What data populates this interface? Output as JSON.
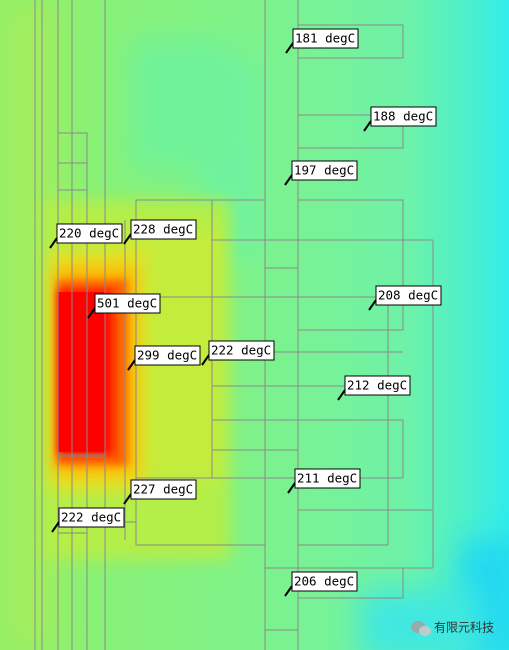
{
  "probes": [
    {
      "label": "181 degC"
    },
    {
      "label": "188 degC"
    },
    {
      "label": "197 degC"
    },
    {
      "label": "220 degC"
    },
    {
      "label": "228 degC"
    },
    {
      "label": "501 degC"
    },
    {
      "label": "208 degC"
    },
    {
      "label": "222 degC"
    },
    {
      "label": "299 degC"
    },
    {
      "label": "212 degC"
    },
    {
      "label": "211 degC"
    },
    {
      "label": "227 degC"
    },
    {
      "label": "222 degC"
    },
    {
      "label": "206 degC"
    }
  ],
  "watermark": "有限元科技"
}
